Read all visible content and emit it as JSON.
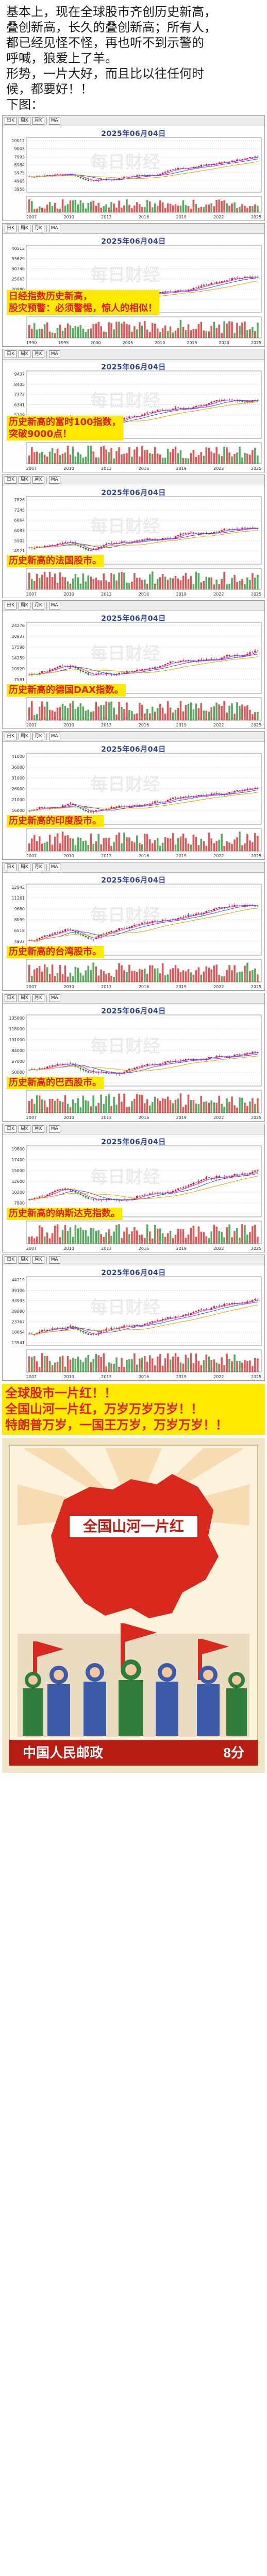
{
  "intro": {
    "line1": "基本上，现在全球股市齐创历史新高，",
    "line2": "叠创新高，长久的叠创新高；所有人，",
    "line3": "都已经见怪不怪，再也听不到示警的",
    "line4": "呼喊，狼爱上了羊。",
    "line5": "形势，一片大好，而且比以往任何时",
    "line6": "候，都要好！！",
    "line7": "下图："
  },
  "toolbar": {
    "day_label": "日K",
    "week_label": "周K",
    "month_label": "月K",
    "indicator_label": "MA"
  },
  "watermark_text": "每日财经",
  "charts": [
    {
      "caption": "2025年06月04日",
      "y_ticks": [
        "10012",
        "9003",
        "7993",
        "6984",
        "5975",
        "4965",
        "3956"
      ],
      "x_ticks": [
        "2007",
        "2010",
        "2013",
        "2016",
        "2019",
        "2022",
        "2025"
      ],
      "banner_lines": []
    },
    {
      "caption": "2025年06月04日",
      "y_ticks": [
        "40512",
        "35629",
        "30746",
        "25863",
        "20980",
        "16097",
        "11214"
      ],
      "x_ticks": [
        "1990",
        "1995",
        "2000",
        "2005",
        "2010",
        "2015",
        "2020",
        "2025"
      ],
      "banner_lines": [
        "日经指数历史新高，",
        "股灾预警：必须警惕，惊人的相似！"
      ]
    },
    {
      "caption": "2025年06月04日",
      "y_ticks": [
        "9437",
        "8405",
        "7373",
        "6341",
        "5309",
        "4277",
        "3245"
      ],
      "x_ticks": [
        "2007",
        "2010",
        "2013",
        "2016",
        "2019",
        "2022",
        "2025"
      ],
      "banner_lines": [
        "历史新高的富时100指数，",
        "突破9000点！"
      ]
    },
    {
      "caption": "2025年06月04日",
      "y_ticks": [
        "7826",
        "7245",
        "6664",
        "6083",
        "5502",
        "4921",
        "4340"
      ],
      "x_ticks": [
        "2007",
        "2010",
        "2013",
        "2016",
        "2019",
        "2022",
        "2025"
      ],
      "banner_lines": [
        "历史新高的法国股市。"
      ]
    },
    {
      "caption": "2025年06月04日",
      "y_ticks": [
        "24276",
        "20937",
        "17598",
        "14259",
        "10920",
        "7581",
        "4242"
      ],
      "x_ticks": [
        "2007",
        "2010",
        "2013",
        "2016",
        "2019",
        "2022",
        "2025"
      ],
      "banner_lines": [
        "历史新高的德国DAX指数。"
      ]
    },
    {
      "caption": "2025年06月04日",
      "y_ticks": [
        "41000",
        "36000",
        "31000",
        "26000",
        "21000",
        "16000",
        "11000"
      ],
      "x_ticks": [
        "2007",
        "2010",
        "2013",
        "2016",
        "2019",
        "2022",
        "2025"
      ],
      "banner_lines": [
        "历史新高的印度股市。"
      ]
    },
    {
      "caption": "2025年06月04日",
      "y_ticks": [
        "12842",
        "11261",
        "9680",
        "8099",
        "6518",
        "4937",
        "3356"
      ],
      "x_ticks": [
        "2007",
        "2010",
        "2013",
        "2016",
        "2019",
        "2022",
        "2025"
      ],
      "banner_lines": [
        "历史新高的台湾股市。"
      ]
    },
    {
      "caption": "2025年06月04日",
      "y_ticks": [
        "135000",
        "118000",
        "101000",
        "84000",
        "67000",
        "50000",
        "33000"
      ],
      "x_ticks": [
        "2007",
        "2010",
        "2013",
        "2016",
        "2019",
        "2022",
        "2025"
      ],
      "banner_lines": [
        "历史新高的巴西股市。"
      ]
    },
    {
      "caption": "2025年06月04日",
      "y_ticks": [
        "19800",
        "17400",
        "15000",
        "12600",
        "10200",
        "7800",
        "5400"
      ],
      "x_ticks": [
        "2007",
        "2010",
        "2013",
        "2016",
        "2019",
        "2022",
        "2025"
      ],
      "banner_lines": [
        "历史新高的纳斯达克指数。"
      ]
    },
    {
      "caption": "2025年06月04日",
      "y_ticks": [
        "44219",
        "39106",
        "33993",
        "28880",
        "23767",
        "18654",
        "13541"
      ],
      "x_ticks": [
        "2007",
        "2010",
        "2013",
        "2016",
        "2019",
        "2022",
        "2025"
      ],
      "banner_lines": []
    }
  ],
  "final_banner": {
    "line1": "全球股市一片红！！",
    "line2": "全国山河一片红，万岁万岁万岁！！",
    "line3": "特朗普万岁，一国王万岁，万岁万岁！！"
  },
  "poster": {
    "title": "全国山河一片红",
    "footer": "中国人民邮政",
    "value": "8分"
  },
  "colors": {
    "banner_bg": "#ffe900",
    "banner_text": "#e01e1e",
    "candle_up": "#d42020",
    "candle_down": "#1e8c2a",
    "ma1": "#ff00ff",
    "ma2": "#2b5cd6",
    "ma3": "#e8a000",
    "poster_red": "#d9281e"
  }
}
